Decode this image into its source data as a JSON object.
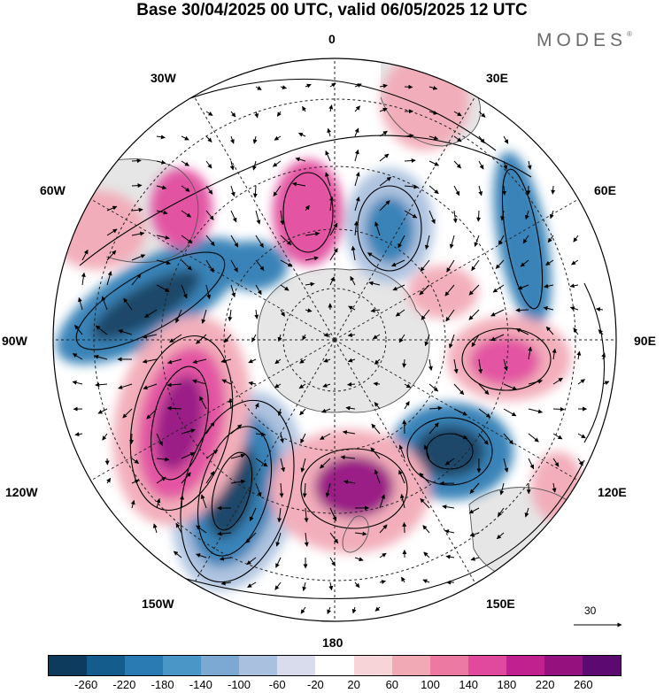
{
  "title": "Base 30/04/2025 00 UTC, valid 06/05/2025 12 UTC",
  "brand": "MODES",
  "brand_mark": "®",
  "lon_labels": {
    "top": "0",
    "bottom": "180",
    "w30": "30W",
    "w60": "60W",
    "w90": "90W",
    "w120": "120W",
    "w150": "150W",
    "e30": "30E",
    "e60": "60E",
    "e90": "90E",
    "e120": "120E",
    "e150": "150E"
  },
  "reference_vector": {
    "label": "30"
  },
  "colorbar": {
    "colors": [
      "#0d3b5e",
      "#135c8c",
      "#2a7ab3",
      "#4a96c6",
      "#7ba9d1",
      "#a9c0de",
      "#d8dcec",
      "#ffffff",
      "#f7d4d8",
      "#f2a9b6",
      "#ec79a1",
      "#e14a9c",
      "#c1208f",
      "#94117e",
      "#5c0a6f"
    ],
    "ticks": [
      "-260",
      "-220",
      "-180",
      "-140",
      "-100",
      "-60",
      "-20",
      "20",
      "60",
      "100",
      "140",
      "180",
      "220",
      "260"
    ]
  },
  "map_colors": {
    "land": "#e6e6e6",
    "coast": "#555555",
    "grid": "#222222",
    "blue_dark": "#0d3b5e",
    "blue_mid": "#2a7ab3",
    "blue_light": "#a9c0de",
    "pink_light": "#f2a9b6",
    "pink_mid": "#e14a9c",
    "magenta": "#94117e"
  }
}
